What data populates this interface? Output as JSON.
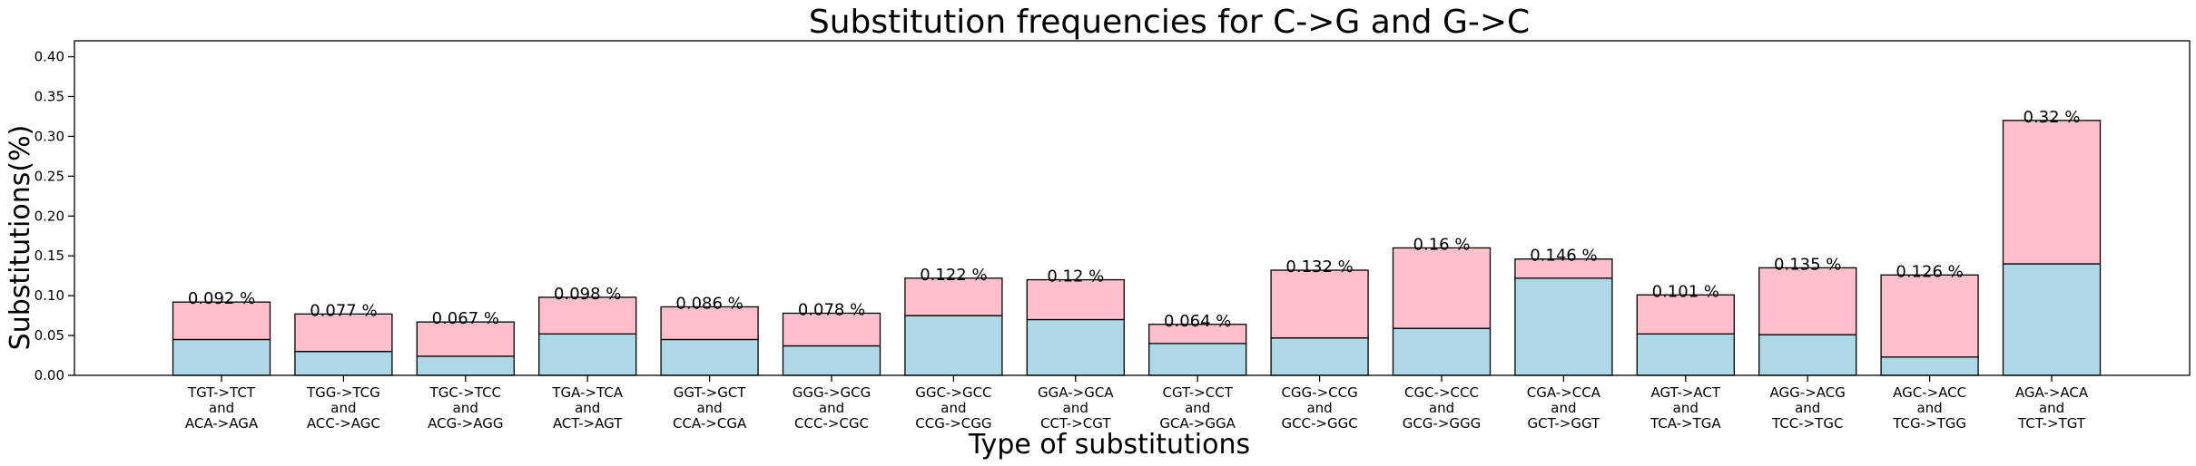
{
  "chart_data": {
    "type": "bar",
    "stacked": true,
    "title": "Substitution frequencies for C->G and G->C",
    "xlabel": "Type of substitutions",
    "ylabel": "Substitutions(%)",
    "ylim": [
      0,
      0.42
    ],
    "yticks": [
      "0.00",
      "0.05",
      "0.10",
      "0.15",
      "0.20",
      "0.25",
      "0.30",
      "0.35",
      "0.40"
    ],
    "grid": false,
    "categories": [
      [
        "TGT->TCT",
        "and",
        "ACA->AGA"
      ],
      [
        "TGG->TCG",
        "and",
        "ACC->AGC"
      ],
      [
        "TGC->TCC",
        "and",
        "ACG->AGG"
      ],
      [
        "TGA->TCA",
        "and",
        "ACT->AGT"
      ],
      [
        "GGT->GCT",
        "and",
        "CCA->CGA"
      ],
      [
        "GGG->GCG",
        "and",
        "CCC->CGC"
      ],
      [
        "GGC->GCC",
        "and",
        "CCG->CGG"
      ],
      [
        "GGA->GCA",
        "and",
        "CCT->CGT"
      ],
      [
        "CGT->CCT",
        "and",
        "GCA->GGA"
      ],
      [
        "CGG->CCG",
        "and",
        "GCC->GGC"
      ],
      [
        "CGC->CCC",
        "and",
        "GCG->GGG"
      ],
      [
        "CGA->CCA",
        "and",
        "GCT->GGT"
      ],
      [
        "AGT->ACT",
        "and",
        "TCA->TGA"
      ],
      [
        "AGG->ACG",
        "and",
        "TCC->TGC"
      ],
      [
        "AGC->ACC",
        "and",
        "TCG->TGG"
      ],
      [
        "AGA->ACA",
        "and",
        "TCT->TGT"
      ]
    ],
    "series": [
      {
        "color": "#add8e6",
        "values": [
          0.045,
          0.03,
          0.024,
          0.052,
          0.045,
          0.037,
          0.075,
          0.07,
          0.04,
          0.047,
          0.059,
          0.122,
          0.052,
          0.051,
          0.023,
          0.14
        ]
      },
      {
        "color": "#ffc0cb",
        "values": [
          0.047,
          0.047,
          0.043,
          0.046,
          0.041,
          0.041,
          0.047,
          0.05,
          0.024,
          0.085,
          0.101,
          0.024,
          0.049,
          0.084,
          0.103,
          0.18
        ]
      }
    ],
    "totals": [
      0.092,
      0.077,
      0.067,
      0.098,
      0.086,
      0.078,
      0.122,
      0.12,
      0.064,
      0.132,
      0.16,
      0.146,
      0.101,
      0.135,
      0.126,
      0.32
    ],
    "data_labels": [
      "0.092 %",
      "0.077 %",
      "0.067 %",
      "0.098 %",
      "0.086 %",
      "0.078 %",
      "0.122 %",
      "0.12 %",
      "0.064 %",
      "0.132 %",
      "0.16 %",
      "0.146 %",
      "0.101 %",
      "0.135 %",
      "0.126 %",
      "0.32 %"
    ]
  }
}
